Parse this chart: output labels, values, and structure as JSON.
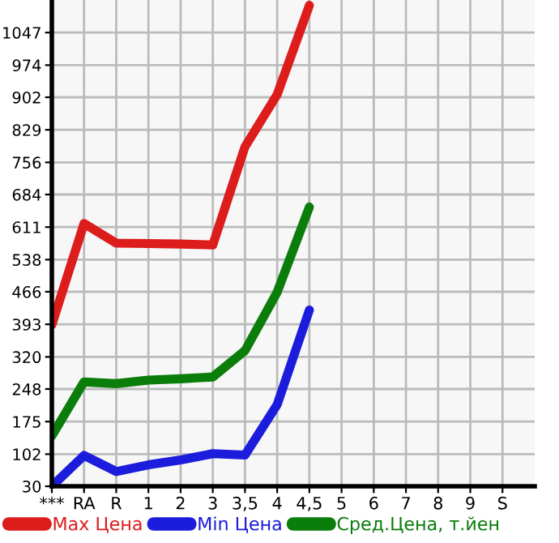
{
  "chart_data": {
    "type": "line",
    "categories": [
      "***",
      "RA",
      "R",
      "1",
      "2",
      "3",
      "3,5",
      "4",
      "4,5",
      "5",
      "6",
      "7",
      "8",
      "9",
      "S"
    ],
    "series": [
      {
        "name": "Max Цена",
        "color": "#dd1c1c",
        "values": [
          392,
          619,
          575,
          574,
          573,
          571,
          791,
          908,
          1108,
          null,
          null,
          null,
          null,
          null,
          null
        ]
      },
      {
        "name": "Min Цена",
        "color": "#1c1cdd",
        "values": [
          30,
          99,
          63,
          78,
          89,
          103,
          100,
          213,
          425,
          null,
          null,
          null,
          null,
          null,
          null
        ]
      },
      {
        "name": "Сред.Цена, т.йен",
        "color": "#0a7d0a",
        "values": [
          143,
          264,
          260,
          268,
          271,
          275,
          334,
          465,
          656,
          null,
          null,
          null,
          null,
          null,
          null
        ]
      }
    ],
    "ylim": [
      30,
      1120
    ],
    "yticks": [
      30,
      102,
      175,
      248,
      320,
      393,
      466,
      538,
      611,
      684,
      756,
      829,
      902,
      974,
      1047
    ],
    "grid": true,
    "legend": "bottom",
    "marker": "none",
    "line_style": "solid"
  }
}
